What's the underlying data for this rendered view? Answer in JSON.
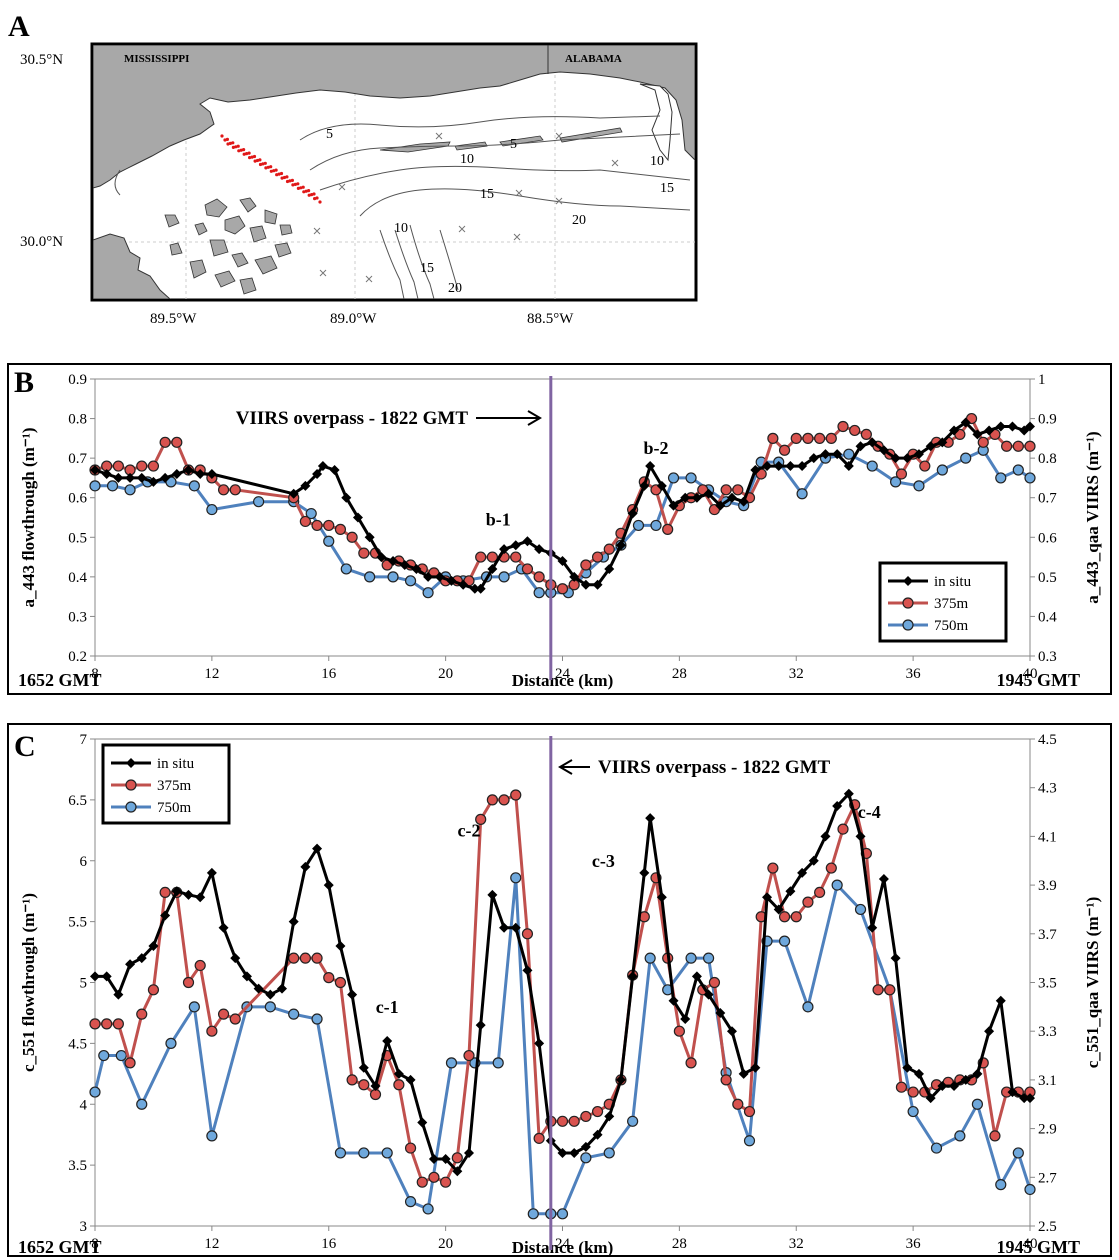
{
  "panels": {
    "a_label": "A",
    "b_label": "B",
    "c_label": "C"
  },
  "map": {
    "states": [
      "MISSISSIPPI",
      "ALABAMA"
    ],
    "lat_labels": [
      "30.5°N",
      "30.0°N"
    ],
    "lon_labels": [
      "89.5°W",
      "89.0°W",
      "88.5°W"
    ],
    "depth_labels": [
      "5",
      "10",
      "15",
      "20"
    ],
    "colors": {
      "land": "#a8a8a8",
      "contour": "#555555",
      "track": "#e01818"
    }
  },
  "colors": {
    "insitu": "#000000",
    "m375": "#c0504d",
    "m750": "#4f81bd",
    "overpass": "#8064a2"
  },
  "chart_data": [
    {
      "type": "line",
      "panel": "B",
      "xlabel": "Distance (km)",
      "ylabel": "a_443 flowthrough (m⁻¹)",
      "y2label": "a_443_qaa VIIRS (m⁻¹)",
      "xlim": [
        8,
        40
      ],
      "xticks": [
        8,
        12,
        16,
        20,
        24,
        28,
        32,
        36,
        40
      ],
      "ylim": [
        0.2,
        0.9
      ],
      "yticks": [
        0.2,
        0.3,
        0.4,
        0.5,
        0.6,
        0.7,
        0.8,
        0.9
      ],
      "y2lim": [
        0.3,
        1.0
      ],
      "y2ticks": [
        0.3,
        0.4,
        0.5,
        0.6,
        0.7,
        0.8,
        0.9,
        1
      ],
      "left_time": "1652 GMT",
      "right_time": "1945 GMT",
      "overpass_x": 23.6,
      "overpass_text": "VIIRS overpass - 1822 GMT",
      "annotations": [
        {
          "text": "b-1",
          "x": 21.8,
          "y": 0.53
        },
        {
          "text": "b-2",
          "x": 27.2,
          "y": 0.71
        }
      ],
      "legend": "bottom-right",
      "series": [
        {
          "name": "in situ",
          "axis": "left",
          "marker": "diamond",
          "x": [
            8,
            8.4,
            8.8,
            9.2,
            9.6,
            10,
            10.4,
            10.8,
            11.2,
            11.6,
            12,
            14.8,
            15.2,
            15.6,
            15.8,
            16.2,
            16.6,
            17,
            17.4,
            17.8,
            18.2,
            18.6,
            19,
            19.4,
            19.8,
            20.2,
            20.6,
            21,
            21.2,
            21.6,
            22,
            22.4,
            22.8,
            23.2,
            23.6,
            24,
            24.4,
            24.8,
            25.2,
            25.6,
            26,
            26.4,
            26.8,
            27,
            27.4,
            27.8,
            28.2,
            28.6,
            29,
            29.4,
            29.8,
            30.2,
            30.6,
            31,
            31.4,
            31.8,
            32.2,
            32.6,
            33,
            33.4,
            33.8,
            34.2,
            34.6,
            35,
            35.4,
            35.8,
            36.2,
            36.6,
            37,
            37.4,
            37.8,
            38.2,
            38.6,
            39,
            39.4,
            39.8,
            40
          ],
          "y": [
            0.67,
            0.66,
            0.65,
            0.65,
            0.65,
            0.64,
            0.65,
            0.66,
            0.67,
            0.66,
            0.66,
            0.61,
            0.63,
            0.66,
            0.68,
            0.67,
            0.6,
            0.55,
            0.5,
            0.45,
            0.44,
            0.43,
            0.42,
            0.4,
            0.4,
            0.39,
            0.38,
            0.37,
            0.37,
            0.42,
            0.47,
            0.48,
            0.49,
            0.47,
            0.46,
            0.44,
            0.4,
            0.38,
            0.38,
            0.42,
            0.48,
            0.56,
            0.63,
            0.68,
            0.63,
            0.58,
            0.6,
            0.6,
            0.61,
            0.58,
            0.6,
            0.59,
            0.67,
            0.68,
            0.68,
            0.68,
            0.68,
            0.7,
            0.71,
            0.71,
            0.68,
            0.73,
            0.74,
            0.72,
            0.7,
            0.7,
            0.71,
            0.73,
            0.74,
            0.77,
            0.79,
            0.76,
            0.77,
            0.78,
            0.78,
            0.77,
            0.78
          ]
        },
        {
          "name": "375m",
          "axis": "right",
          "marker": "circle",
          "x": [
            8,
            8.4,
            8.8,
            9.2,
            9.6,
            10,
            10.4,
            10.8,
            11.2,
            11.6,
            12,
            12.4,
            12.8,
            14.8,
            15.2,
            15.6,
            16,
            16.4,
            16.8,
            17.2,
            17.6,
            18,
            18.4,
            18.8,
            19.2,
            19.6,
            20,
            20.4,
            20.8,
            21.2,
            21.6,
            22,
            22.4,
            22.8,
            23.2,
            23.6,
            24,
            24.4,
            24.8,
            25.2,
            25.6,
            26,
            26.4,
            26.8,
            27.2,
            27.6,
            28,
            28.4,
            28.8,
            29.2,
            29.6,
            30,
            30.4,
            30.8,
            31.2,
            31.6,
            32,
            32.4,
            32.8,
            33.2,
            33.6,
            34,
            34.4,
            34.8,
            35.2,
            35.6,
            36,
            36.4,
            36.8,
            37.2,
            37.6,
            38,
            38.4,
            38.8,
            39.2,
            39.6,
            40
          ],
          "y": [
            0.77,
            0.78,
            0.78,
            0.77,
            0.78,
            0.78,
            0.84,
            0.84,
            0.77,
            0.77,
            0.75,
            0.72,
            0.72,
            0.7,
            0.64,
            0.63,
            0.63,
            0.62,
            0.6,
            0.56,
            0.56,
            0.53,
            0.54,
            0.53,
            0.52,
            0.51,
            0.49,
            0.49,
            0.49,
            0.55,
            0.55,
            0.55,
            0.55,
            0.52,
            0.5,
            0.48,
            0.47,
            0.48,
            0.53,
            0.55,
            0.57,
            0.61,
            0.67,
            0.74,
            0.72,
            0.62,
            0.68,
            0.7,
            0.72,
            0.67,
            0.72,
            0.72,
            0.7,
            0.76,
            0.85,
            0.82,
            0.85,
            0.85,
            0.85,
            0.85,
            0.88,
            0.87,
            0.86,
            0.83,
            0.81,
            0.76,
            0.81,
            0.78,
            0.84,
            0.84,
            0.86,
            0.9,
            0.84,
            0.86,
            0.83,
            0.83,
            0.83
          ]
        },
        {
          "name": "750m",
          "axis": "right",
          "marker": "circle",
          "x": [
            8,
            8.6,
            9.2,
            9.8,
            10.6,
            11.4,
            12,
            13.6,
            14.8,
            15.4,
            16,
            16.6,
            17.4,
            18.2,
            18.8,
            19.4,
            20,
            20.6,
            21.4,
            22,
            22.6,
            23.2,
            23.6,
            24.2,
            24.8,
            25.4,
            26,
            26.6,
            27.2,
            27.8,
            28.4,
            29,
            29.6,
            30.2,
            30.8,
            31.4,
            32.2,
            33,
            33.8,
            34.6,
            35.4,
            36.2,
            37,
            37.8,
            38.4,
            39,
            39.6,
            40
          ],
          "y": [
            0.73,
            0.73,
            0.72,
            0.74,
            0.74,
            0.73,
            0.67,
            0.69,
            0.69,
            0.66,
            0.59,
            0.52,
            0.5,
            0.5,
            0.49,
            0.46,
            0.5,
            0.49,
            0.5,
            0.5,
            0.52,
            0.46,
            0.46,
            0.46,
            0.51,
            0.55,
            0.58,
            0.63,
            0.63,
            0.75,
            0.75,
            0.72,
            0.69,
            0.68,
            0.79,
            0.79,
            0.71,
            0.8,
            0.81,
            0.78,
            0.74,
            0.73,
            0.77,
            0.8,
            0.82,
            0.75,
            0.77,
            0.75
          ]
        }
      ]
    },
    {
      "type": "line",
      "panel": "C",
      "xlabel": "Distance (km)",
      "ylabel": "c_551 flowthrough (m⁻¹)",
      "y2label": "c_551_qaa VIIRS (m⁻¹)",
      "xlim": [
        8,
        40
      ],
      "xticks": [
        8,
        12,
        16,
        20,
        24,
        28,
        32,
        36,
        40
      ],
      "ylim": [
        3,
        7
      ],
      "yticks": [
        3,
        3.5,
        4,
        4.5,
        5,
        5.5,
        6,
        6.5,
        7
      ],
      "y2lim": [
        2.5,
        4.5
      ],
      "y2ticks": [
        2.5,
        2.7,
        2.9,
        3.1,
        3.3,
        3.5,
        3.7,
        3.9,
        4.1,
        4.3,
        4.5
      ],
      "left_time": "1652 GMT",
      "right_time": "1945 GMT",
      "overpass_x": 23.6,
      "overpass_text": "VIIRS overpass - 1822 GMT",
      "annotations": [
        {
          "text": "c-1",
          "x": 18,
          "y": 4.75
        },
        {
          "text": "c-2",
          "x": 20.8,
          "y": 6.2
        },
        {
          "text": "c-3",
          "x": 25.4,
          "y": 5.95
        },
        {
          "text": "c-4",
          "x": 34.5,
          "y": 6.35
        }
      ],
      "legend": "top-left",
      "series": [
        {
          "name": "in situ",
          "axis": "left",
          "marker": "diamond",
          "x": [
            8,
            8.4,
            8.8,
            9.2,
            9.6,
            10,
            10.4,
            10.8,
            11.2,
            11.6,
            12,
            12.4,
            12.8,
            13.2,
            13.6,
            14,
            14.4,
            14.8,
            15.2,
            15.6,
            16,
            16.4,
            16.8,
            17.2,
            17.6,
            18,
            18.4,
            18.8,
            19.2,
            19.6,
            20,
            20.4,
            20.8,
            21.2,
            21.6,
            22,
            22.4,
            22.8,
            23.2,
            23.6,
            24,
            24.4,
            24.8,
            25.2,
            25.6,
            26,
            26.4,
            26.8,
            27,
            27.4,
            27.8,
            28.2,
            28.6,
            29,
            29.4,
            29.8,
            30.2,
            30.6,
            31,
            31.4,
            31.8,
            32.2,
            32.6,
            33,
            33.4,
            33.8,
            34.2,
            34.6,
            35,
            35.4,
            35.8,
            36.2,
            36.6,
            37,
            37.4,
            37.8,
            38.2,
            38.6,
            39,
            39.4,
            39.8,
            40
          ],
          "y": [
            5.05,
            5.05,
            4.9,
            5.15,
            5.2,
            5.3,
            5.55,
            5.75,
            5.72,
            5.7,
            5.9,
            5.45,
            5.2,
            5.05,
            4.95,
            4.9,
            4.95,
            5.5,
            5.95,
            6.1,
            5.8,
            5.3,
            4.9,
            4.3,
            4.15,
            4.52,
            4.25,
            4.2,
            3.85,
            3.55,
            3.55,
            3.45,
            3.6,
            4.65,
            5.72,
            5.45,
            5.45,
            5.1,
            4.5,
            3.7,
            3.6,
            3.6,
            3.65,
            3.75,
            3.9,
            4.2,
            5.05,
            5.9,
            6.35,
            5.7,
            4.85,
            4.7,
            5.05,
            4.9,
            4.75,
            4.6,
            4.25,
            4.3,
            5.7,
            5.6,
            5.75,
            5.9,
            6.0,
            6.2,
            6.45,
            6.55,
            6.2,
            5.45,
            5.85,
            5.2,
            4.3,
            4.25,
            4.05,
            4.15,
            4.15,
            4.2,
            4.25,
            4.6,
            4.85,
            4.1,
            4.05,
            4.05
          ]
        },
        {
          "name": "375m",
          "axis": "right",
          "marker": "circle",
          "x": [
            8,
            8.4,
            8.8,
            9.2,
            9.6,
            10,
            10.4,
            10.8,
            11.2,
            11.6,
            12,
            12.4,
            12.8,
            14.8,
            15.2,
            15.6,
            16,
            16.4,
            16.8,
            17.2,
            17.6,
            18,
            18.4,
            18.8,
            19.2,
            19.6,
            20,
            20.4,
            20.8,
            21.2,
            21.6,
            22,
            22.4,
            22.8,
            23.2,
            23.6,
            24,
            24.4,
            24.8,
            25.2,
            25.6,
            26,
            26.4,
            26.8,
            27.2,
            27.6,
            28,
            28.4,
            28.8,
            29.2,
            29.6,
            30,
            30.4,
            30.8,
            31.2,
            31.6,
            32,
            32.4,
            32.8,
            33.2,
            33.6,
            34,
            34.4,
            34.8,
            35.2,
            35.6,
            36,
            36.4,
            36.8,
            37.2,
            37.6,
            38,
            38.4,
            38.8,
            39.2,
            39.6,
            40
          ],
          "y": [
            3.33,
            3.33,
            3.33,
            3.17,
            3.37,
            3.47,
            3.87,
            3.87,
            3.5,
            3.57,
            3.3,
            3.37,
            3.35,
            3.6,
            3.6,
            3.6,
            3.52,
            3.5,
            3.1,
            3.08,
            3.04,
            3.2,
            3.08,
            2.82,
            2.68,
            2.7,
            2.68,
            2.78,
            3.2,
            4.17,
            4.25,
            4.25,
            4.27,
            3.7,
            2.86,
            2.93,
            2.93,
            2.93,
            2.95,
            2.97,
            3.0,
            3.1,
            3.53,
            3.77,
            3.93,
            3.6,
            3.3,
            3.17,
            3.47,
            3.5,
            3.1,
            3.0,
            2.97,
            3.77,
            3.97,
            3.77,
            3.77,
            3.83,
            3.87,
            3.97,
            4.13,
            4.23,
            4.03,
            3.47,
            3.47,
            3.07,
            3.05,
            3.05,
            3.08,
            3.09,
            3.1,
            3.1,
            3.17,
            2.87,
            3.05,
            3.05,
            3.05
          ]
        },
        {
          "name": "750m",
          "axis": "right",
          "marker": "circle",
          "x": [
            8,
            8.3,
            8.9,
            9.6,
            10.6,
            11.4,
            12,
            13.2,
            14,
            14.8,
            15.6,
            16.4,
            17.2,
            18,
            18.8,
            19.4,
            20.2,
            21,
            21.8,
            22.4,
            23,
            23.6,
            24,
            24.8,
            25.6,
            26.4,
            27,
            27.6,
            28.4,
            29,
            29.6,
            30.4,
            31,
            31.6,
            32.4,
            33.4,
            34.2,
            35.2,
            36,
            36.8,
            37.6,
            38.2,
            39,
            39.6,
            40
          ],
          "y": [
            3.05,
            3.2,
            3.2,
            3.0,
            3.25,
            3.4,
            2.87,
            3.4,
            3.4,
            3.37,
            3.35,
            2.8,
            2.8,
            2.8,
            2.6,
            2.57,
            3.17,
            3.17,
            3.17,
            3.93,
            2.55,
            2.55,
            2.55,
            2.78,
            2.8,
            2.93,
            3.6,
            3.47,
            3.6,
            3.6,
            3.13,
            2.85,
            3.67,
            3.67,
            3.4,
            3.9,
            3.8,
            3.47,
            2.97,
            2.82,
            2.87,
            3.0,
            2.67,
            2.8,
            2.65
          ]
        }
      ]
    }
  ]
}
